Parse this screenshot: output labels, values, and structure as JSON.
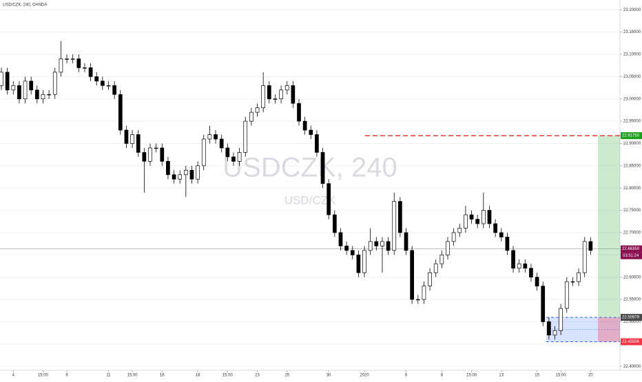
{
  "chart_data": {
    "type": "candlestick",
    "title": "USD/CZK, 240, OANDA",
    "watermark": "USDCZK, 240",
    "watermark_sub": "USD/CZK",
    "categories": [
      null,
      null,
      "4",
      null,
      null,
      null,
      null,
      "15:00",
      null,
      null,
      null,
      "9",
      null,
      null,
      null,
      null,
      null,
      null,
      "11",
      null,
      null,
      null,
      "15:00",
      null,
      null,
      null,
      null,
      "16",
      null,
      null,
      null,
      null,
      null,
      "18",
      null,
      null,
      null,
      null,
      "15:00",
      null,
      null,
      null,
      null,
      "23",
      null,
      null,
      null,
      null,
      "25",
      null,
      null,
      null,
      null,
      null,
      null,
      "30",
      null,
      null,
      null,
      null,
      null,
      "2020",
      null,
      null,
      null,
      null,
      null,
      null,
      "6",
      null,
      null,
      null,
      null,
      null,
      "8",
      null,
      null,
      null,
      null,
      "15:00",
      null,
      null,
      null,
      null,
      "13",
      null,
      null,
      null,
      null,
      null,
      "15",
      null,
      null,
      null,
      "15:00",
      null,
      null,
      null,
      null,
      "20"
    ],
    "open": [
      23.03,
      23.06,
      23.02,
      23.03,
      23.0,
      23.04,
      23.02,
      23.0,
      23.01,
      23.01,
      23.06,
      23.09,
      23.09,
      23.09,
      23.07,
      23.07,
      23.05,
      23.04,
      23.03,
      23.03,
      23.01,
      22.93,
      22.9,
      22.92,
      22.88,
      22.86,
      22.89,
      22.89,
      22.86,
      22.83,
      22.82,
      22.83,
      22.84,
      22.82,
      22.85,
      22.91,
      22.92,
      22.91,
      22.89,
      22.87,
      22.86,
      22.88,
      22.95,
      22.97,
      22.98,
      23.03,
      23.0,
      23.0,
      23.02,
      23.03,
      22.99,
      22.95,
      22.93,
      22.92,
      22.88,
      22.81,
      22.74,
      22.7,
      22.67,
      22.66,
      22.65,
      22.61,
      22.66,
      22.68,
      22.67,
      22.68,
      22.66,
      22.77,
      22.7,
      22.66,
      22.55,
      22.55,
      22.58,
      22.61,
      22.63,
      22.65,
      22.68,
      22.7,
      22.71,
      22.74,
      22.73,
      22.72,
      22.75,
      22.72,
      22.7,
      22.69,
      22.66,
      22.62,
      22.63,
      22.62,
      22.6,
      22.58,
      22.5,
      22.47,
      22.48,
      22.53,
      22.59,
      22.59,
      22.61,
      22.68
    ],
    "high": [
      23.07,
      23.07,
      23.04,
      23.04,
      23.05,
      23.05,
      23.03,
      23.02,
      23.02,
      23.07,
      23.13,
      23.1,
      23.1,
      23.1,
      23.08,
      23.08,
      23.06,
      23.05,
      23.04,
      23.04,
      23.02,
      22.94,
      22.93,
      22.93,
      22.89,
      22.9,
      22.9,
      22.9,
      22.87,
      22.84,
      22.84,
      22.85,
      22.85,
      22.86,
      22.92,
      22.94,
      22.93,
      22.92,
      22.9,
      22.88,
      22.89,
      22.96,
      22.98,
      22.99,
      23.06,
      23.04,
      23.01,
      23.03,
      23.04,
      23.04,
      23.0,
      22.96,
      22.94,
      22.93,
      22.89,
      22.82,
      22.75,
      22.71,
      22.68,
      22.67,
      22.66,
      22.67,
      22.71,
      22.69,
      22.69,
      22.69,
      22.79,
      22.78,
      22.71,
      22.67,
      22.56,
      22.59,
      22.62,
      22.64,
      22.66,
      22.69,
      22.71,
      22.72,
      22.76,
      22.75,
      22.74,
      22.79,
      22.76,
      22.73,
      22.71,
      22.7,
      22.67,
      22.64,
      22.64,
      22.63,
      22.61,
      22.59,
      22.51,
      22.49,
      22.54,
      22.6,
      22.6,
      22.62,
      22.69,
      22.69
    ],
    "low": [
      23.02,
      23.01,
      23.01,
      22.99,
      22.99,
      23.01,
      22.99,
      22.99,
      23.0,
      23.0,
      23.05,
      23.08,
      23.08,
      23.06,
      23.06,
      23.04,
      23.03,
      23.02,
      23.02,
      23.0,
      22.92,
      22.89,
      22.89,
      22.87,
      22.79,
      22.85,
      22.88,
      22.85,
      22.82,
      22.81,
      22.81,
      22.78,
      22.81,
      22.81,
      22.84,
      22.9,
      22.9,
      22.88,
      22.86,
      22.85,
      22.85,
      22.87,
      22.94,
      22.96,
      22.97,
      22.99,
      22.99,
      22.99,
      23.01,
      22.98,
      22.94,
      22.92,
      22.91,
      22.87,
      22.8,
      22.73,
      22.69,
      22.66,
      22.65,
      22.64,
      22.6,
      22.6,
      22.65,
      22.66,
      22.61,
      22.65,
      22.65,
      22.69,
      22.65,
      22.54,
      22.54,
      22.54,
      22.57,
      22.6,
      22.62,
      22.64,
      22.67,
      22.69,
      22.7,
      22.72,
      22.71,
      22.71,
      22.71,
      22.69,
      22.68,
      22.65,
      22.61,
      22.61,
      22.61,
      22.59,
      22.57,
      22.49,
      22.46,
      22.46,
      22.47,
      22.52,
      22.58,
      22.58,
      22.6,
      22.65
    ],
    "close": [
      23.06,
      23.02,
      23.03,
      23.0,
      23.04,
      23.02,
      23.0,
      23.01,
      23.01,
      23.06,
      23.09,
      23.09,
      23.09,
      23.07,
      23.07,
      23.05,
      23.04,
      23.03,
      23.03,
      23.01,
      22.93,
      22.9,
      22.92,
      22.88,
      22.86,
      22.89,
      22.89,
      22.86,
      22.83,
      22.82,
      22.83,
      22.84,
      22.82,
      22.85,
      22.91,
      22.92,
      22.91,
      22.89,
      22.87,
      22.86,
      22.88,
      22.95,
      22.97,
      22.98,
      23.03,
      23.0,
      23.0,
      23.02,
      23.03,
      22.99,
      22.95,
      22.93,
      22.92,
      22.88,
      22.81,
      22.74,
      22.7,
      22.67,
      22.66,
      22.65,
      22.61,
      22.66,
      22.68,
      22.67,
      22.68,
      22.66,
      22.77,
      22.7,
      22.66,
      22.55,
      22.55,
      22.58,
      22.61,
      22.63,
      22.65,
      22.68,
      22.7,
      22.71,
      22.74,
      22.73,
      22.72,
      22.75,
      22.72,
      22.7,
      22.69,
      22.66,
      22.62,
      22.63,
      22.62,
      22.6,
      22.58,
      22.5,
      22.47,
      22.48,
      22.53,
      22.59,
      22.59,
      22.61,
      22.68,
      22.66
    ],
    "up_color": "#ffffff",
    "down_color": "#000000",
    "ylim": [
      22.391,
      23.222
    ],
    "yticks": [
      {
        "value": 22.4,
        "label": "22.40000"
      },
      {
        "value": 22.45,
        "label": "22.45000"
      },
      {
        "value": 22.5,
        "label": "22.50000"
      },
      {
        "value": 22.55,
        "label": "22.55000"
      },
      {
        "value": 22.6,
        "label": "22.60000"
      },
      {
        "value": 22.65,
        "label": "22.65000"
      },
      {
        "value": 22.7,
        "label": "22.70000"
      },
      {
        "value": 22.75,
        "label": "22.75000"
      },
      {
        "value": 22.8,
        "label": "22.80000"
      },
      {
        "value": 22.85,
        "label": "22.85000"
      },
      {
        "value": 22.9,
        "label": "22.90000"
      },
      {
        "value": 22.95,
        "label": "22.95000"
      },
      {
        "value": 23.0,
        "label": "23.00000"
      },
      {
        "value": 23.05,
        "label": "23.05000"
      },
      {
        "value": 23.1,
        "label": "23.10000"
      },
      {
        "value": 23.15,
        "label": "23.15000"
      },
      {
        "value": 23.2,
        "label": "23.20000"
      }
    ],
    "grid": true,
    "current_price": {
      "value": 22.6635,
      "label": "22.66350",
      "color": "#880e4f"
    },
    "countdown": "03:51:24",
    "position": {
      "target": {
        "value": 22.9175,
        "label": "22.91750",
        "color": "#1e9e1e"
      },
      "entry": {
        "value": 22.50979,
        "label": "22.50979",
        "color": "#4a4a4a"
      },
      "stop": {
        "value": 22.45506,
        "label": "22.45506",
        "color": "#f23645"
      }
    }
  }
}
